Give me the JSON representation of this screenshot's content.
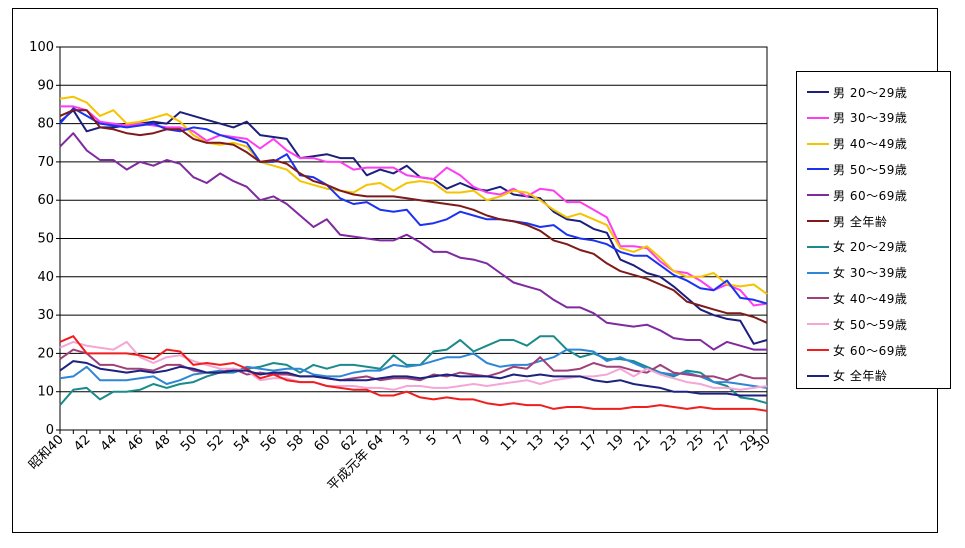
{
  "chart_data": {
    "type": "line",
    "title": "",
    "xlabel": "",
    "ylabel": "",
    "ylim": [
      0,
      100
    ],
    "y_ticks": [
      0,
      10,
      20,
      30,
      40,
      50,
      60,
      70,
      80,
      90,
      100
    ],
    "grid": true,
    "legend_position": "right",
    "x": [
      "昭和40",
      "41",
      "42",
      "43",
      "44",
      "45",
      "46",
      "47",
      "48",
      "49",
      "50",
      "51",
      "52",
      "53",
      "54",
      "55",
      "56",
      "57",
      "58",
      "59",
      "60",
      "61",
      "62",
      "63",
      "平成元年",
      "2",
      "3",
      "4",
      "5",
      "6",
      "7",
      "8",
      "9",
      "10",
      "11",
      "12",
      "13",
      "14",
      "15",
      "16",
      "17",
      "18",
      "19",
      "20",
      "21",
      "22",
      "23",
      "24",
      "25",
      "26",
      "27",
      "28",
      "29",
      "30"
    ],
    "x_tick_labels": [
      "昭和40",
      "42",
      "44",
      "46",
      "48",
      "50",
      "52",
      "54",
      "56",
      "58",
      "60",
      "62",
      "平成元年 64",
      "3",
      "5",
      "7",
      "9",
      "11",
      "13",
      "15",
      "17",
      "19",
      "21",
      "23",
      "25",
      "27",
      "29",
      "30"
    ],
    "series": [
      {
        "name": "男 20～29歳",
        "color": "#1c1f7c",
        "values": [
          80.5,
          83.5,
          78.0,
          79.0,
          79.0,
          79.5,
          80.0,
          80.5,
          80.0,
          83.0,
          82.0,
          81.0,
          80.0,
          79.0,
          80.5,
          77.0,
          76.5,
          76.0,
          71.0,
          71.5,
          72.0,
          71.0,
          71.0,
          66.5,
          68.0,
          67.0,
          69.0,
          66.0,
          65.5,
          63.0,
          64.5,
          63.0,
          62.5,
          63.5,
          61.5,
          61.0,
          60.5,
          57.0,
          55.0,
          54.5,
          52.5,
          51.5,
          44.5,
          43.0,
          41.0,
          40.0,
          37.5,
          34.5,
          31.5,
          30.0,
          29.0,
          28.5,
          22.5,
          23.5
        ]
      },
      {
        "name": "男 30～39歳",
        "color": "#ff3cf0",
        "values": [
          84.5,
          84.5,
          83.5,
          80.5,
          80.0,
          79.5,
          80.0,
          79.5,
          79.0,
          79.0,
          78.0,
          75.5,
          77.0,
          76.5,
          76.0,
          73.5,
          76.0,
          73.0,
          71.0,
          71.0,
          70.0,
          70.0,
          68.0,
          68.5,
          68.5,
          68.5,
          66.5,
          66.0,
          65.5,
          68.5,
          66.5,
          63.5,
          62.0,
          61.5,
          63.0,
          61.0,
          63.0,
          62.5,
          59.5,
          59.5,
          57.5,
          55.5,
          48.0,
          48.0,
          47.5,
          44.0,
          41.5,
          41.0,
          39.0,
          36.5,
          38.0,
          36.5,
          32.5,
          33.0
        ]
      },
      {
        "name": "男 40～49歳",
        "color": "#f5c400",
        "values": [
          86.5,
          87.0,
          85.5,
          82.0,
          83.5,
          80.0,
          80.5,
          81.5,
          82.5,
          80.5,
          77.0,
          75.0,
          74.5,
          75.0,
          74.0,
          70.0,
          69.0,
          68.0,
          65.0,
          64.0,
          63.0,
          62.5,
          62.0,
          64.0,
          64.5,
          62.5,
          64.5,
          65.0,
          64.5,
          62.0,
          62.0,
          62.5,
          60.0,
          61.0,
          62.5,
          62.0,
          60.0,
          57.5,
          55.5,
          56.5,
          55.0,
          53.5,
          47.5,
          46.5,
          48.0,
          45.0,
          41.5,
          40.0,
          40.0,
          41.0,
          38.0,
          37.5,
          38.0,
          35.5
        ]
      },
      {
        "name": "男 50～59歳",
        "color": "#1b33f0",
        "values": [
          80.0,
          84.0,
          82.0,
          80.0,
          79.5,
          79.0,
          79.5,
          80.0,
          78.5,
          78.0,
          79.0,
          78.5,
          77.0,
          76.0,
          75.0,
          70.0,
          70.0,
          72.0,
          66.5,
          66.0,
          64.0,
          60.5,
          59.0,
          59.5,
          57.5,
          57.0,
          57.5,
          53.5,
          54.0,
          55.0,
          57.0,
          56.0,
          55.0,
          55.0,
          54.5,
          54.0,
          53.0,
          53.5,
          51.0,
          50.0,
          49.5,
          48.5,
          46.5,
          45.5,
          45.5,
          43.0,
          40.5,
          39.0,
          37.0,
          36.5,
          39.0,
          34.5,
          34.0,
          33.0
        ]
      },
      {
        "name": "男 60～69歳",
        "color": "#7f2aa0",
        "values": [
          74.0,
          77.5,
          73.0,
          70.5,
          70.5,
          68.0,
          70.0,
          69.0,
          70.5,
          69.5,
          66.0,
          64.5,
          67.0,
          65.0,
          63.5,
          60.0,
          61.0,
          59.0,
          56.0,
          53.0,
          55.0,
          51.0,
          50.5,
          50.0,
          49.5,
          49.5,
          51.0,
          49.0,
          46.5,
          46.5,
          45.0,
          44.5,
          43.5,
          41.0,
          38.5,
          37.5,
          36.5,
          34.0,
          32.0,
          32.0,
          30.5,
          28.0,
          27.5,
          27.0,
          27.5,
          26.0,
          24.0,
          23.5,
          23.5,
          21.0,
          23.0,
          22.0,
          21.0,
          21.0
        ]
      },
      {
        "name": "男 全年齢",
        "color": "#7e1a1a",
        "values": [
          82.0,
          83.5,
          83.5,
          79.0,
          78.5,
          77.5,
          77.0,
          77.5,
          78.5,
          78.5,
          76.0,
          75.0,
          75.0,
          74.5,
          72.5,
          70.0,
          70.5,
          69.5,
          67.0,
          65.0,
          64.0,
          62.5,
          61.5,
          61.0,
          61.0,
          61.0,
          60.5,
          60.0,
          59.5,
          59.0,
          58.5,
          57.5,
          56.0,
          55.0,
          54.5,
          53.5,
          52.0,
          49.5,
          48.5,
          47.0,
          46.0,
          43.5,
          41.5,
          40.5,
          39.5,
          38.0,
          36.5,
          33.5,
          32.5,
          31.5,
          30.5,
          30.5,
          29.5,
          28.0
        ]
      },
      {
        "name": "女 20～29歳",
        "color": "#1a8a8a",
        "values": [
          6.5,
          10.5,
          11.0,
          8.0,
          10.0,
          10.0,
          10.5,
          12.0,
          11.0,
          12.0,
          12.5,
          14.0,
          15.0,
          15.0,
          16.0,
          16.5,
          17.5,
          17.0,
          15.0,
          17.0,
          16.0,
          17.0,
          17.0,
          16.5,
          16.0,
          19.5,
          17.0,
          17.0,
          20.5,
          21.0,
          23.5,
          20.5,
          22.0,
          23.5,
          23.5,
          22.0,
          24.5,
          24.5,
          21.0,
          19.0,
          20.0,
          18.5,
          18.5,
          18.0,
          16.5,
          15.0,
          14.0,
          15.5,
          15.0,
          12.5,
          11.5,
          8.5,
          8.0,
          7.0
        ]
      },
      {
        "name": "女 30～39歳",
        "color": "#2e86d6",
        "values": [
          13.5,
          14.0,
          16.5,
          13.0,
          13.0,
          13.0,
          13.5,
          14.0,
          12.0,
          13.0,
          14.5,
          15.0,
          15.5,
          15.0,
          16.5,
          16.0,
          15.5,
          16.0,
          16.0,
          14.5,
          14.0,
          14.0,
          15.0,
          15.5,
          15.5,
          17.0,
          16.5,
          17.0,
          18.0,
          19.0,
          19.0,
          20.0,
          17.5,
          16.5,
          17.0,
          17.0,
          18.0,
          19.0,
          21.0,
          21.0,
          20.5,
          18.0,
          19.0,
          17.5,
          16.0,
          15.0,
          14.5,
          15.0,
          14.0,
          12.5,
          12.5,
          12.0,
          11.5,
          11.0
        ]
      },
      {
        "name": "女 40～49歳",
        "color": "#a0407a",
        "values": [
          18.5,
          21.0,
          20.0,
          17.0,
          17.0,
          16.0,
          16.0,
          15.5,
          17.0,
          17.0,
          15.5,
          15.0,
          15.0,
          16.0,
          14.5,
          15.0,
          14.5,
          14.5,
          14.0,
          14.0,
          13.5,
          13.0,
          13.5,
          14.0,
          13.0,
          13.5,
          13.5,
          13.0,
          14.5,
          14.0,
          15.0,
          14.5,
          14.0,
          15.0,
          16.5,
          16.0,
          19.0,
          15.5,
          15.5,
          16.0,
          17.5,
          16.5,
          16.5,
          15.5,
          15.0,
          17.0,
          15.0,
          14.5,
          14.0,
          14.0,
          13.0,
          14.5,
          13.5,
          13.5
        ]
      },
      {
        "name": "女 50～59歳",
        "color": "#f4a6d6",
        "values": [
          21.5,
          23.0,
          22.0,
          21.5,
          21.0,
          23.0,
          19.0,
          17.5,
          19.0,
          19.5,
          18.0,
          17.0,
          16.0,
          16.0,
          15.5,
          13.0,
          13.5,
          13.5,
          12.5,
          12.5,
          11.5,
          11.5,
          11.5,
          11.0,
          11.0,
          10.5,
          11.5,
          11.5,
          11.0,
          11.0,
          11.5,
          12.0,
          11.5,
          12.0,
          12.5,
          13.0,
          12.0,
          13.0,
          13.5,
          14.0,
          14.0,
          14.5,
          16.0,
          14.0,
          16.0,
          14.5,
          13.5,
          12.5,
          12.0,
          11.0,
          11.0,
          10.5,
          11.0,
          11.5
        ]
      },
      {
        "name": "女 60～69歳",
        "color": "#f01e1e",
        "values": [
          23.0,
          24.5,
          20.0,
          20.0,
          20.0,
          20.0,
          19.5,
          18.5,
          21.0,
          20.5,
          17.0,
          17.5,
          17.0,
          17.5,
          16.0,
          13.5,
          14.5,
          13.0,
          12.5,
          12.5,
          11.5,
          11.0,
          10.5,
          10.5,
          9.0,
          9.0,
          10.0,
          8.5,
          8.0,
          8.5,
          8.0,
          8.0,
          7.0,
          6.5,
          7.0,
          6.5,
          6.5,
          5.5,
          6.0,
          6.0,
          5.5,
          5.5,
          5.5,
          6.0,
          6.0,
          6.5,
          6.0,
          5.5,
          6.0,
          5.5,
          5.5,
          5.5,
          5.5,
          5.0
        ]
      },
      {
        "name": "女 全年齢",
        "color": "#1c2280",
        "values": [
          15.5,
          18.0,
          17.5,
          16.0,
          15.5,
          15.0,
          15.5,
          15.0,
          15.5,
          16.5,
          16.0,
          15.0,
          15.0,
          15.5,
          15.5,
          14.5,
          15.0,
          15.0,
          14.0,
          14.0,
          13.5,
          13.0,
          13.0,
          13.0,
          13.5,
          14.0,
          14.0,
          13.5,
          14.0,
          14.5,
          14.0,
          14.0,
          14.0,
          13.5,
          14.5,
          14.0,
          14.5,
          14.0,
          14.0,
          14.0,
          13.0,
          12.5,
          13.0,
          12.0,
          11.5,
          11.0,
          10.0,
          10.0,
          9.5,
          9.5,
          9.5,
          9.0,
          9.0,
          9.0
        ]
      }
    ]
  }
}
